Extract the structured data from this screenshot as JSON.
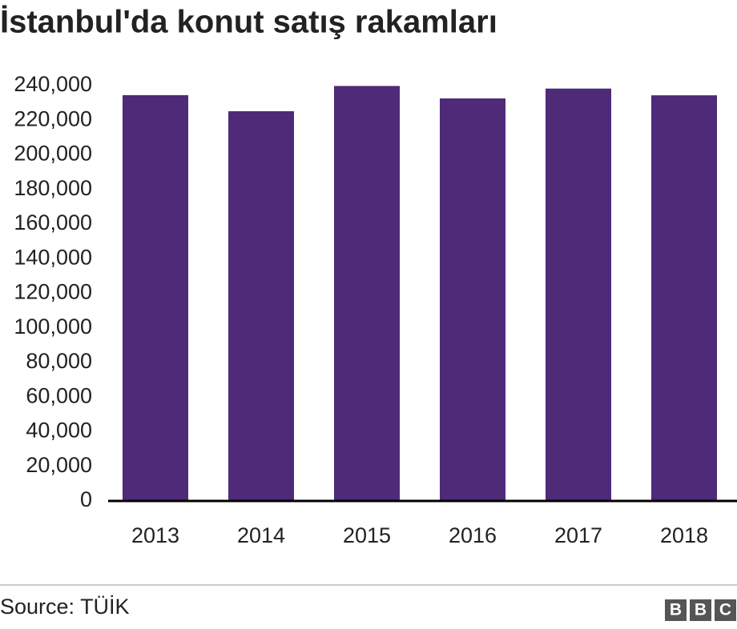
{
  "chart_data": {
    "type": "bar",
    "title": "İstanbul'da konut satış rakamları",
    "categories": [
      "2013",
      "2014",
      "2015",
      "2016",
      "2017",
      "2018"
    ],
    "values": [
      234500,
      225200,
      239800,
      232600,
      238300,
      234400
    ],
    "color": "#4e2a78",
    "ylim": [
      0,
      240000
    ],
    "yticks": [
      0,
      {
        "value": 20000,
        "label": "20,000"
      },
      {
        "value": 40000,
        "label": "40,000"
      },
      {
        "value": 60000,
        "label": "60,000"
      },
      {
        "value": 80000,
        "label": "80,000"
      },
      {
        "value": 100000,
        "label": "100,000"
      },
      {
        "value": 120000,
        "label": "120,000"
      },
      {
        "value": 140000,
        "label": "140,000"
      },
      {
        "value": 160000,
        "label": "160,000"
      },
      {
        "value": 180000,
        "label": "180,000"
      },
      {
        "value": 200000,
        "label": "200,000"
      },
      {
        "value": 220000,
        "label": "220,000"
      },
      {
        "value": 240000,
        "label": "240,000"
      }
    ],
    "grid": false,
    "source": "Source: TÜİK",
    "logo": [
      "B",
      "B",
      "C"
    ]
  }
}
